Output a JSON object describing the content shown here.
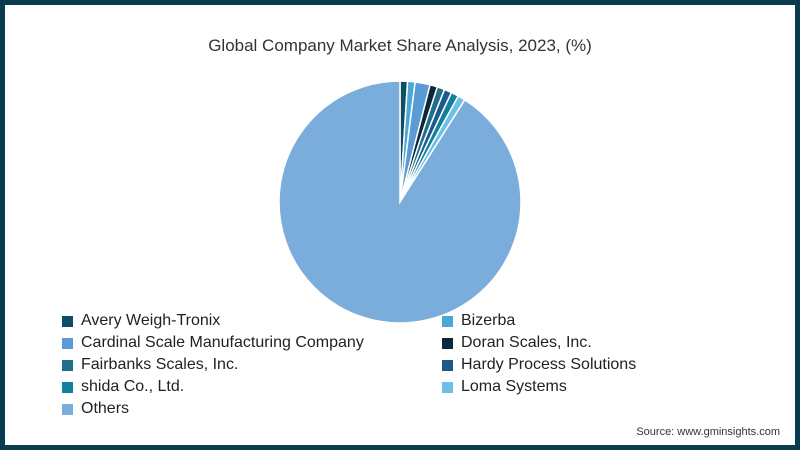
{
  "chart_data": {
    "type": "pie",
    "title": "Global Company Market Share Analysis, 2023, (%)",
    "categories": [
      "Avery Weigh-Tronix",
      "Bizerba",
      "Cardinal Scale Manufacturing Company",
      "Doran Scales, Inc.",
      "Fairbanks Scales, Inc.",
      "Hardy Process Solutions",
      "shida Co., Ltd.",
      "Loma Systems",
      "Others"
    ],
    "values": [
      1.0,
      1.0,
      2.0,
      1.0,
      1.0,
      1.0,
      1.0,
      1.0,
      91.0
    ],
    "colors": [
      "#0e4d64",
      "#48a8d8",
      "#5b9bd5",
      "#0a2a3a",
      "#1f6f8b",
      "#1d5a8c",
      "#10819c",
      "#6cc0e8",
      "#7aaddc"
    ],
    "legend_position": "bottom",
    "start_angle": "12 o'clock, clockwise"
  },
  "header": {
    "title": "Global Company Market Share Analysis, 2023, (%)"
  },
  "legend": {
    "items": [
      {
        "label": "Avery Weigh-Tronix",
        "color": "#0e4d64"
      },
      {
        "label": "Bizerba",
        "color": "#48a8d8"
      },
      {
        "label": "Cardinal Scale Manufacturing Company",
        "color": "#5b9bd5"
      },
      {
        "label": "Doran Scales, Inc.",
        "color": "#0a2a3a"
      },
      {
        "label": "Fairbanks Scales, Inc.",
        "color": "#1f6f8b"
      },
      {
        "label": "Hardy Process Solutions",
        "color": "#1d5a8c"
      },
      {
        "label": "shida Co., Ltd.",
        "color": "#10819c"
      },
      {
        "label": "Loma Systems",
        "color": "#6cc0e8"
      },
      {
        "label": "Others",
        "color": "#7aaddc"
      }
    ]
  },
  "footer": {
    "source": "Source: www.gminsights.com"
  },
  "colors": {
    "border": "#0b3b4f"
  }
}
